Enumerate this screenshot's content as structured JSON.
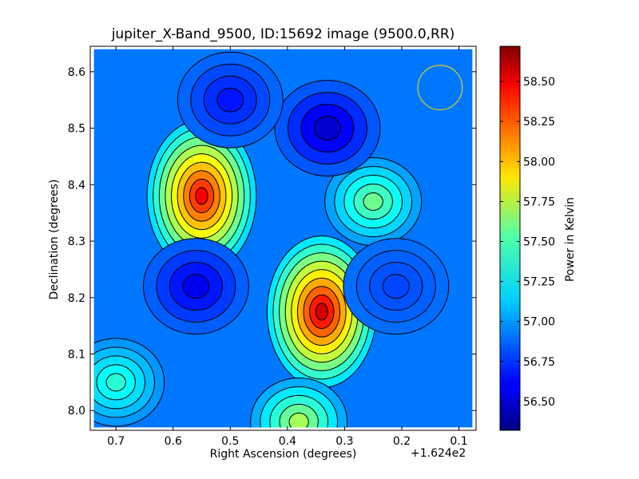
{
  "title": "jupiter_X-Band_9500, ID:15692 image (9500.0,RR)",
  "chart_data": {
    "type": "heatmap",
    "title": "jupiter_X-Band_9500, ID:15692 image (9500.0,RR)",
    "xlabel": "Right Ascension (degrees)",
    "x_offset_label": "+1.624e2",
    "ylabel": "Declination (degrees)",
    "colorbar_label": "Power in Kelvin",
    "xlim": [
      0.745,
      0.07
    ],
    "ylim": [
      7.965,
      8.645
    ],
    "x_ticks": [
      0.7,
      0.6,
      0.5,
      0.4,
      0.3,
      0.2,
      0.1
    ],
    "x_tick_labels": [
      "0.7",
      "0.6",
      "0.5",
      "0.4",
      "0.3",
      "0.2",
      "0.1"
    ],
    "y_ticks": [
      8.0,
      8.1,
      8.2,
      8.3,
      8.4,
      8.5,
      8.6
    ],
    "y_tick_labels": [
      "8.0",
      "8.1",
      "8.2",
      "8.3",
      "8.4",
      "8.5",
      "8.6"
    ],
    "colorbar_range": [
      56.32,
      58.72
    ],
    "colorbar_ticks": [
      56.5,
      56.75,
      57.0,
      57.25,
      57.5,
      57.75,
      58.0,
      58.25,
      58.5
    ],
    "colorbar_tick_labels": [
      "56.50",
      "56.75",
      "57.00",
      "57.25",
      "57.50",
      "57.75",
      "58.00",
      "58.25",
      "58.50"
    ],
    "colormap": "jet",
    "contour_color": "#000000",
    "beam_circle": {
      "ra": 0.133,
      "dec": 8.572,
      "radius_deg": 0.054,
      "color": "#c8c832"
    },
    "base_level": 56.9,
    "features": [
      {
        "ra": 0.55,
        "dec": 8.38,
        "peak": 58.6,
        "kind": "hot"
      },
      {
        "ra": 0.34,
        "dec": 8.175,
        "peak": 58.7,
        "kind": "hot"
      },
      {
        "ra": 0.25,
        "dec": 8.37,
        "peak": 57.6,
        "kind": "warm"
      },
      {
        "ra": 0.38,
        "dec": 7.98,
        "peak": 57.75,
        "kind": "warm"
      },
      {
        "ra": 0.7,
        "dec": 8.05,
        "peak": 57.4,
        "kind": "warm"
      },
      {
        "ra": 0.33,
        "dec": 8.5,
        "peak": 56.4,
        "kind": "cold"
      },
      {
        "ra": 0.5,
        "dec": 8.55,
        "peak": 56.6,
        "kind": "cold"
      },
      {
        "ra": 0.56,
        "dec": 8.22,
        "peak": 56.5,
        "kind": "cold"
      },
      {
        "ra": 0.21,
        "dec": 8.22,
        "peak": 56.75,
        "kind": "cold"
      }
    ]
  }
}
